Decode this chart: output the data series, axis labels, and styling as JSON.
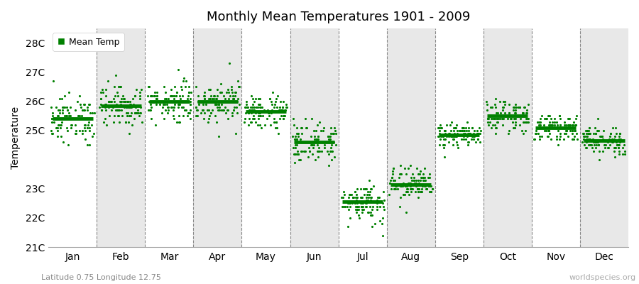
{
  "title": "Monthly Mean Temperatures 1901 - 2009",
  "ylabel": "Temperature",
  "subtitle": "Latitude 0.75 Longitude 12.75",
  "watermark": "worldspecies.org",
  "legend_label": "Mean Temp",
  "dot_color": "#008000",
  "background_color": "#ffffff",
  "band_colors": [
    "#ffffff",
    "#e8e8e8"
  ],
  "ylim": [
    21,
    28.5
  ],
  "yticks": [
    21,
    22,
    23,
    24,
    25,
    26,
    27,
    28
  ],
  "ytick_labels": [
    "21C",
    "22C",
    "23C",
    "",
    "25C",
    "26C",
    "27C",
    "28C"
  ],
  "months": [
    "Jan",
    "Feb",
    "Mar",
    "Apr",
    "May",
    "Jun",
    "Jul",
    "Aug",
    "Sep",
    "Oct",
    "Nov",
    "Dec"
  ],
  "monthly_means": [
    25.4,
    25.85,
    26.0,
    26.0,
    25.65,
    24.6,
    22.55,
    23.15,
    24.85,
    25.5,
    25.1,
    24.65
  ],
  "monthly_data_means": [
    25.4,
    25.85,
    26.0,
    26.0,
    25.65,
    24.6,
    22.55,
    23.15,
    24.85,
    25.5,
    25.1,
    24.65
  ],
  "monthly_data_stds": [
    0.4,
    0.35,
    0.35,
    0.35,
    0.3,
    0.35,
    0.35,
    0.3,
    0.2,
    0.25,
    0.2,
    0.25
  ],
  "n_years": 109
}
